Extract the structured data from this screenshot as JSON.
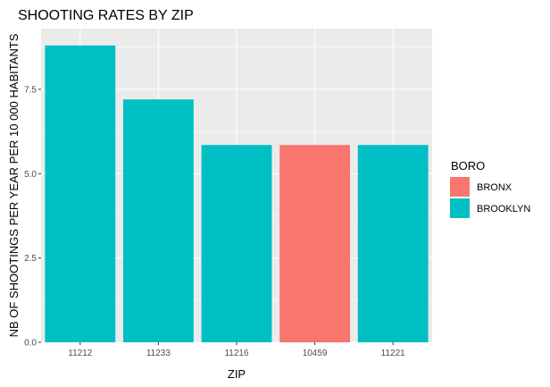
{
  "chart_data": {
    "type": "bar",
    "title": "SHOOTING RATES BY ZIP",
    "xlabel": "ZIP",
    "ylabel": "NB OF SHOOTINGS PER YEAR PER 10 000 HABITANTS",
    "categories": [
      "11212",
      "11233",
      "11216",
      "10459",
      "11221"
    ],
    "values": [
      8.8,
      7.2,
      5.85,
      5.85,
      5.85
    ],
    "groups": [
      "BROOKLYN",
      "BROOKLYN",
      "BROOKLYN",
      "BRONX",
      "BROOKLYN"
    ],
    "ylim": [
      0,
      9.3
    ],
    "yticks": [
      0,
      2.5,
      5,
      7.5
    ],
    "ytick_labels": [
      "0.0",
      "2.5",
      "5.0",
      "7.5"
    ],
    "grid": true,
    "legend": {
      "title": "BORO",
      "placement": "right",
      "entries": [
        {
          "label": "BRONX",
          "color": "#F8766D"
        },
        {
          "label": "BROOKLYN",
          "color": "#00BFC4"
        }
      ]
    },
    "panel_background": "#EBEBEB",
    "gridline_color": "#FFFFFF"
  }
}
